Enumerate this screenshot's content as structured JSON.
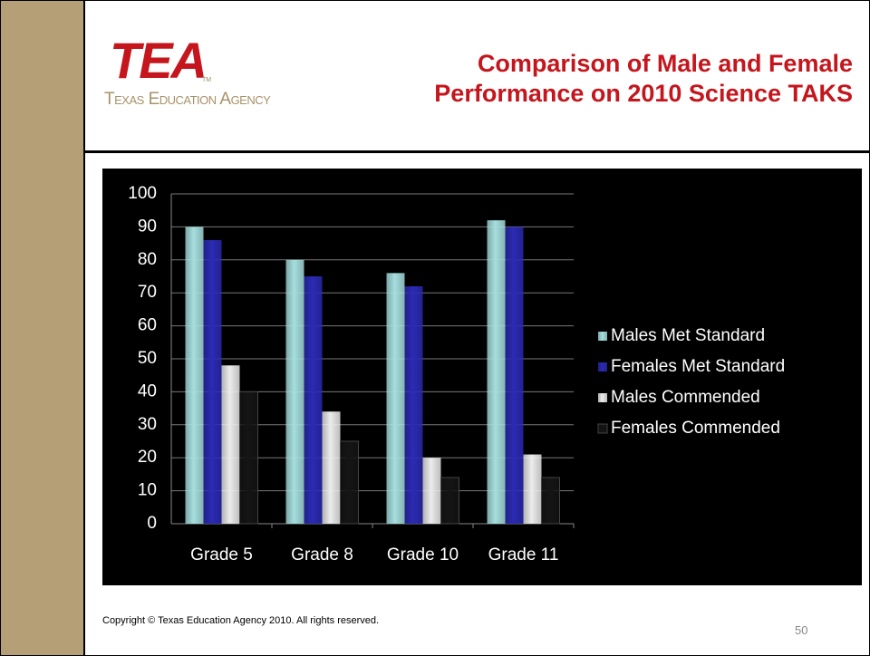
{
  "logo": {
    "mark": "TEA",
    "tm": "TM",
    "name": "Texas Education Agency"
  },
  "footer": {
    "copyright": "Copyright © Texas Education Agency 2010. All rights reserved.",
    "page": "50"
  },
  "chart_data": {
    "type": "bar",
    "title": "Comparison of Male and Female Performance on 2010 Science TAKS",
    "categories": [
      "Grade 5",
      "Grade 8",
      "Grade 10",
      "Grade 11"
    ],
    "series": [
      {
        "name": "Males Met Standard",
        "color": "#a6dede",
        "values": [
          90,
          80,
          76,
          92
        ]
      },
      {
        "name": "Females Met Standard",
        "color": "#2b2bb5",
        "values": [
          86,
          75,
          72,
          90
        ]
      },
      {
        "name": "Males Commended",
        "color": "#ececec",
        "values": [
          48,
          34,
          20,
          21
        ]
      },
      {
        "name": "Females Commended",
        "color": "#151515",
        "values": [
          40,
          25,
          14,
          14
        ]
      }
    ],
    "ylim": [
      0,
      100
    ],
    "yticks": [
      0,
      10,
      20,
      30,
      40,
      50,
      60,
      70,
      80,
      90,
      100
    ],
    "grid": true,
    "legend": "right"
  }
}
